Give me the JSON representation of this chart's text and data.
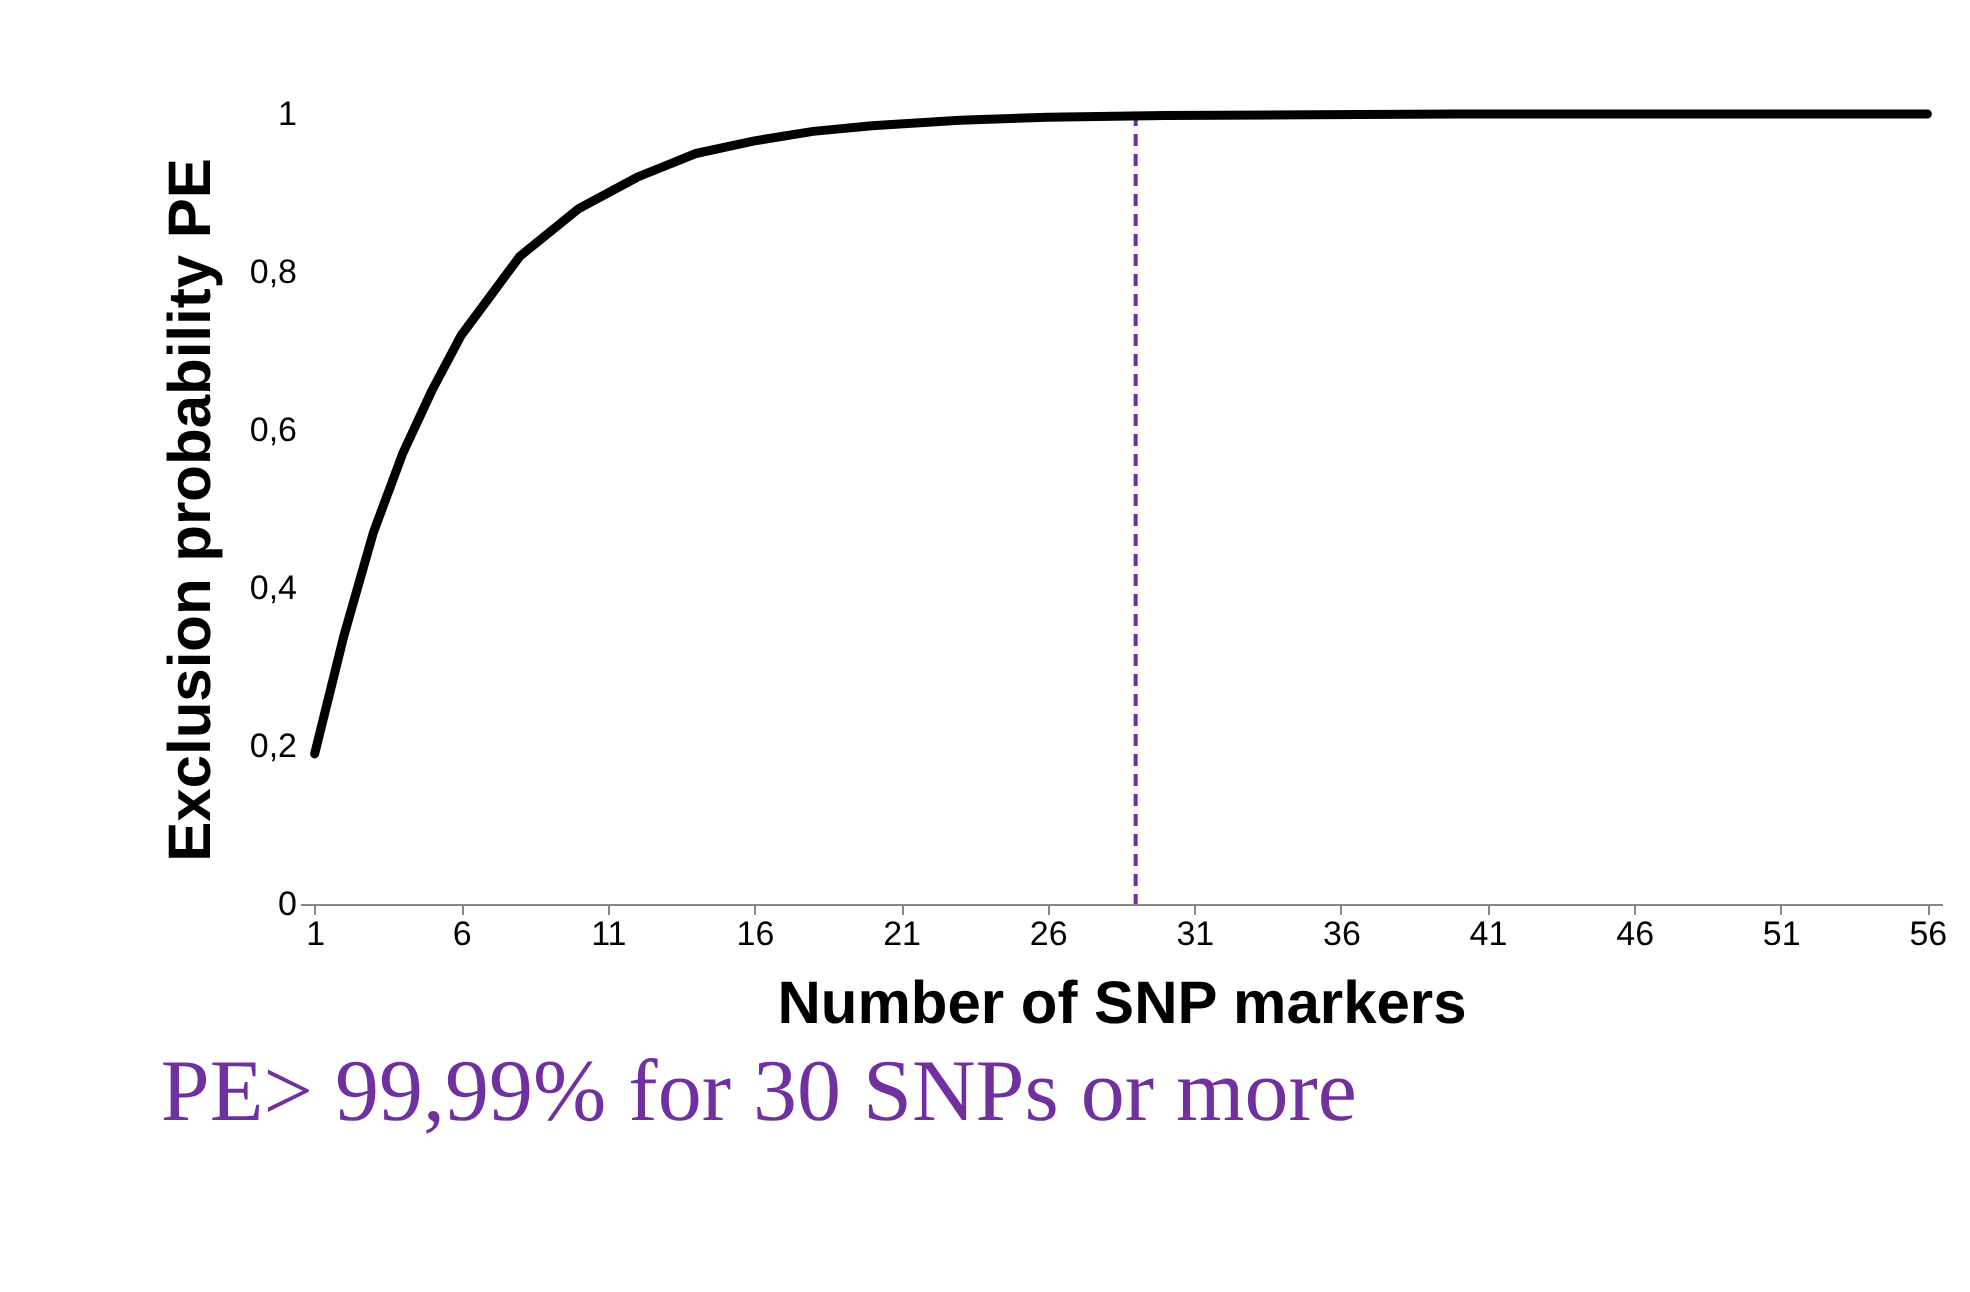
{
  "chart_data": {
    "type": "line",
    "xlabel": "Number of SNP markers",
    "ylabel": "Exclusion probability PE",
    "x": [
      1,
      2,
      3,
      4,
      5,
      6,
      7,
      8,
      9,
      10,
      11,
      12,
      13,
      14,
      16,
      18,
      20,
      23,
      26,
      30,
      35,
      40,
      56
    ],
    "series": [
      {
        "color": "#000000",
        "values": [
          0.19,
          0.34,
          0.47,
          0.57,
          0.65,
          0.72,
          0.77,
          0.82,
          0.85,
          0.88,
          0.9,
          0.92,
          0.935,
          0.95,
          0.966,
          0.978,
          0.985,
          0.992,
          0.996,
          0.998,
          0.999,
          1,
          1
        ]
      }
    ],
    "xlim": [
      0.5,
      56.5
    ],
    "xticks": [
      1,
      6,
      11,
      16,
      21,
      26,
      31,
      36,
      41,
      46,
      51,
      56
    ],
    "ylim": [
      0,
      1
    ],
    "yticks": [
      0,
      {
        "value": 0.2,
        "label": "0,2"
      },
      {
        "value": 0.4,
        "label": "0,4"
      },
      {
        "value": 0.6,
        "label": "0,6"
      },
      {
        "value": 0.8,
        "label": "0,8"
      },
      1
    ],
    "ref_lines": [
      {
        "axis": "x",
        "value": 29,
        "color": "#7030a0",
        "line_style": "dashed"
      }
    ],
    "annotations": [
      "PE> 99,99% for  30 SNPs or more"
    ],
    "grid": false,
    "marker": "none",
    "line_style": "solid"
  }
}
